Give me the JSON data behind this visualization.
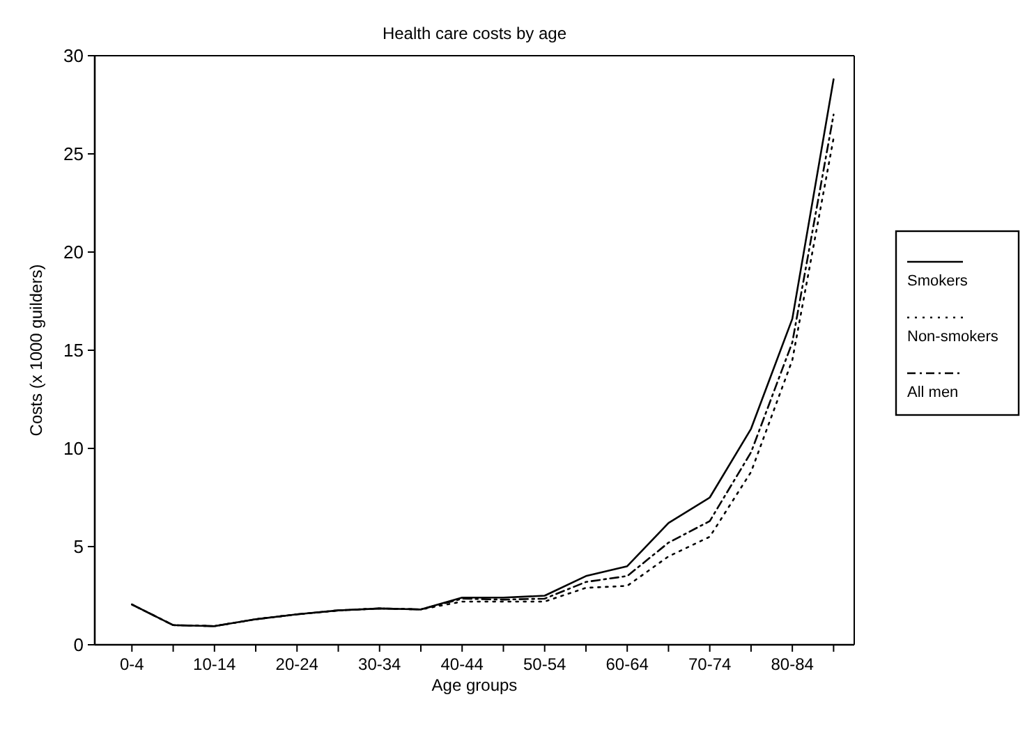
{
  "chart_data": {
    "type": "line",
    "title": "Health care costs by age",
    "xlabel": "Age groups",
    "ylabel": "Costs (x 1000 guilders)",
    "categories": [
      "0-4",
      null,
      "10-14",
      null,
      "20-24",
      null,
      "30-34",
      null,
      "40-44",
      null,
      "50-54",
      null,
      "60-64",
      null,
      "70-74",
      null,
      "80-84",
      null
    ],
    "series": [
      {
        "name": "Smokers",
        "color": "#000000",
        "line_style": "solid",
        "values": [
          2.05,
          1.0,
          0.95,
          1.3,
          1.55,
          1.75,
          1.85,
          1.8,
          2.4,
          2.4,
          2.5,
          3.5,
          4.0,
          6.2,
          7.5,
          11.0,
          16.6,
          28.8
        ]
      },
      {
        "name": "Non-smokers",
        "color": "#000000",
        "line_style": "dotted",
        "values": [
          2.05,
          1.0,
          0.95,
          1.3,
          1.55,
          1.75,
          1.85,
          1.8,
          2.2,
          2.2,
          2.2,
          2.9,
          3.0,
          4.5,
          5.5,
          8.8,
          14.5,
          25.8
        ]
      },
      {
        "name": "All men",
        "color": "#000000",
        "line_style": "dashdot",
        "values": [
          2.05,
          1.0,
          0.95,
          1.3,
          1.55,
          1.75,
          1.85,
          1.8,
          2.35,
          2.3,
          2.35,
          3.2,
          3.5,
          5.2,
          6.3,
          9.8,
          15.4,
          27.0
        ]
      }
    ],
    "ylim": [
      0,
      30
    ],
    "yticks": [
      0,
      5,
      10,
      15,
      20,
      25,
      30
    ],
    "grid": false,
    "legend": "right",
    "marker": "none"
  }
}
